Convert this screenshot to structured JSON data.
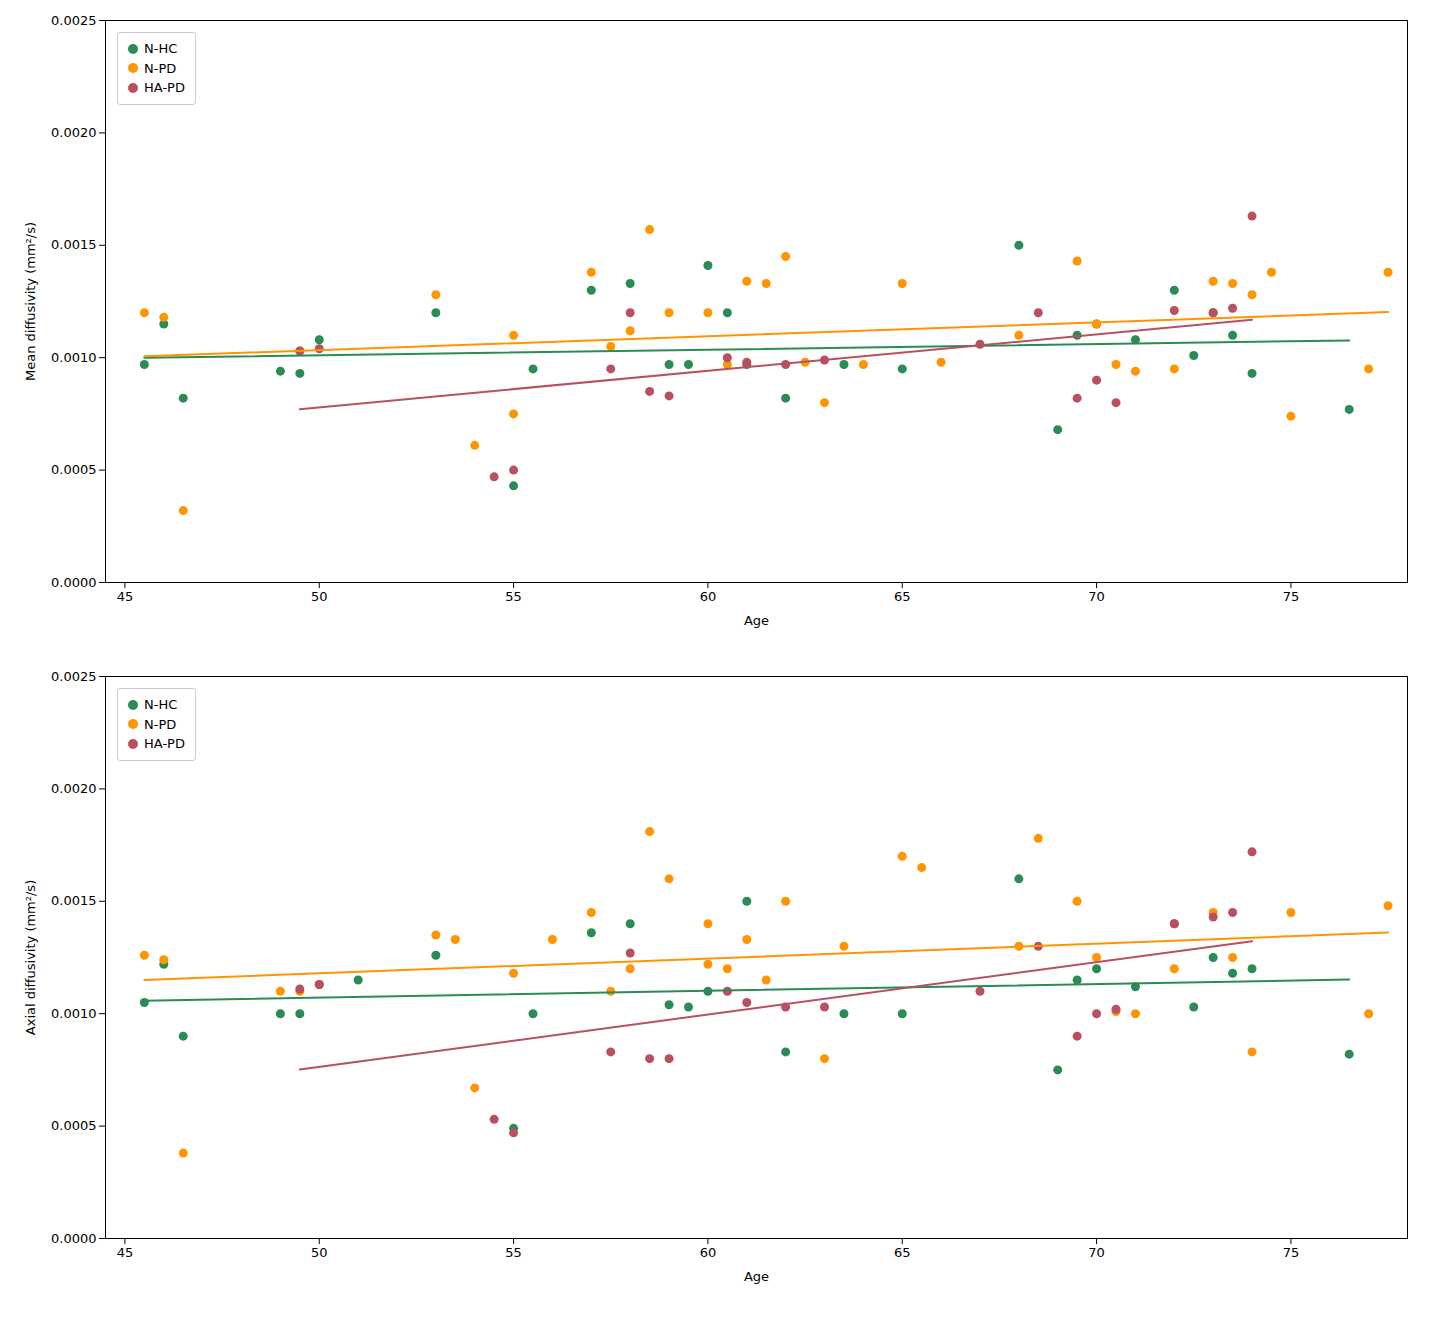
{
  "chart_data": [
    {
      "type": "scatter",
      "xlabel": "Age",
      "ylabel": "Mean diffusivity (mm²/s)",
      "xlim": [
        44.5,
        78
      ],
      "ylim": [
        0,
        0.0025
      ],
      "xticks": [
        45,
        50,
        55,
        60,
        65,
        70,
        75
      ],
      "yticks": [
        {
          "value": 0.0,
          "label": "0.0000"
        },
        {
          "value": 0.0005,
          "label": "0.0005"
        },
        {
          "value": 0.001,
          "label": "0.0010"
        },
        {
          "value": 0.0015,
          "label": "0.0015"
        },
        {
          "value": 0.002,
          "label": "0.0020"
        },
        {
          "value": 0.0025,
          "label": "0.0025"
        }
      ],
      "grid": false,
      "legend": "upper left",
      "series": [
        {
          "name": "N-HC",
          "color": "#2a8c55",
          "x": [
            45.5,
            46.0,
            46.5,
            49.0,
            49.5,
            50.0,
            53.0,
            55.0,
            55.5,
            57.0,
            58.0,
            59.0,
            59.5,
            60.0,
            60.5,
            61.0,
            62.0,
            63.5,
            65.0,
            68.0,
            69.0,
            69.5,
            70.0,
            71.0,
            72.0,
            72.5,
            73.0,
            73.5,
            74.0,
            76.5
          ],
          "values": [
            0.00097,
            0.00115,
            0.00082,
            0.00094,
            0.00093,
            0.00108,
            0.0012,
            0.00043,
            0.00095,
            0.0013,
            0.00133,
            0.00097,
            0.00097,
            0.00141,
            0.0012,
            0.00097,
            0.00082,
            0.00097,
            0.00095,
            0.0015,
            0.00068,
            0.0011,
            0.00115,
            0.00108,
            0.0013,
            0.00101,
            0.0012,
            0.0011,
            0.00093,
            0.00077
          ]
        },
        {
          "name": "N-PD",
          "color": "#ff9500",
          "x": [
            45.5,
            46.0,
            46.5,
            49.5,
            53.0,
            54.0,
            55.0,
            55.0,
            57.0,
            57.5,
            58.0,
            58.5,
            59.0,
            60.0,
            60.5,
            61.0,
            61.5,
            62.0,
            62.5,
            63.0,
            64.0,
            65.0,
            66.0,
            68.0,
            69.5,
            70.0,
            70.5,
            71.0,
            72.0,
            73.0,
            73.5,
            74.0,
            74.5,
            75.0,
            77.0,
            77.5
          ],
          "values": [
            0.0012,
            0.00118,
            0.00032,
            0.00103,
            0.00128,
            0.00061,
            0.00075,
            0.0011,
            0.00138,
            0.00105,
            0.00112,
            0.00157,
            0.0012,
            0.0012,
            0.00097,
            0.00134,
            0.00133,
            0.00145,
            0.00098,
            0.0008,
            0.00097,
            0.00133,
            0.00098,
            0.0011,
            0.00143,
            0.00115,
            0.00097,
            0.00094,
            0.00095,
            0.00134,
            0.00133,
            0.00128,
            0.00138,
            0.00074,
            0.00095,
            0.00138
          ]
        },
        {
          "name": "HA-PD",
          "color": "#b85060",
          "x": [
            49.5,
            50.0,
            54.5,
            55.0,
            57.5,
            58.0,
            58.5,
            59.0,
            60.5,
            61.0,
            62.0,
            63.0,
            67.0,
            68.5,
            69.5,
            70.0,
            70.5,
            72.0,
            73.0,
            73.5,
            74.0
          ],
          "values": [
            0.00103,
            0.00104,
            0.00047,
            0.0005,
            0.00095,
            0.0012,
            0.00085,
            0.00083,
            0.001,
            0.00098,
            0.00097,
            0.00099,
            0.00106,
            0.0012,
            0.00082,
            0.0009,
            0.0008,
            0.00121,
            0.0012,
            0.00122,
            0.00163
          ]
        }
      ]
    },
    {
      "type": "scatter",
      "xlabel": "Age",
      "ylabel": "Axial diffusivity (mm²/s)",
      "xlim": [
        44.5,
        78
      ],
      "ylim": [
        0,
        0.0025
      ],
      "xticks": [
        45,
        50,
        55,
        60,
        65,
        70,
        75
      ],
      "yticks": [
        {
          "value": 0.0,
          "label": "0.0000"
        },
        {
          "value": 0.0005,
          "label": "0.0005"
        },
        {
          "value": 0.001,
          "label": "0.0010"
        },
        {
          "value": 0.0015,
          "label": "0.0015"
        },
        {
          "value": 0.002,
          "label": "0.0020"
        },
        {
          "value": 0.0025,
          "label": "0.0025"
        }
      ],
      "grid": false,
      "legend": "upper left",
      "series": [
        {
          "name": "N-HC",
          "color": "#2a8c55",
          "x": [
            45.5,
            46.0,
            46.5,
            49.0,
            49.5,
            50.0,
            51.0,
            53.0,
            55.0,
            55.5,
            57.0,
            58.0,
            59.0,
            59.5,
            60.0,
            61.0,
            62.0,
            63.5,
            65.0,
            68.0,
            69.0,
            69.5,
            70.0,
            71.0,
            72.0,
            72.5,
            73.0,
            73.5,
            74.0,
            76.5
          ],
          "values": [
            0.00105,
            0.00122,
            0.0009,
            0.001,
            0.001,
            0.00113,
            0.00115,
            0.00126,
            0.00049,
            0.001,
            0.00136,
            0.0014,
            0.00104,
            0.00103,
            0.0011,
            0.0015,
            0.00083,
            0.001,
            0.001,
            0.0016,
            0.00075,
            0.00115,
            0.0012,
            0.00112,
            0.0014,
            0.00103,
            0.00125,
            0.00118,
            0.0012,
            0.00082
          ]
        },
        {
          "name": "N-PD",
          "color": "#ff9500",
          "x": [
            45.5,
            46.0,
            46.5,
            49.0,
            49.5,
            53.0,
            53.5,
            54.0,
            55.0,
            56.0,
            57.0,
            57.5,
            58.0,
            58.5,
            59.0,
            60.0,
            60.0,
            60.5,
            61.0,
            61.5,
            62.0,
            63.0,
            63.5,
            65.0,
            65.5,
            68.0,
            68.5,
            69.5,
            70.0,
            70.5,
            71.0,
            72.0,
            73.0,
            73.5,
            74.0,
            75.0,
            77.0,
            77.5
          ],
          "values": [
            0.00126,
            0.00124,
            0.00038,
            0.0011,
            0.0011,
            0.00135,
            0.00133,
            0.00067,
            0.00118,
            0.00133,
            0.00145,
            0.0011,
            0.0012,
            0.00181,
            0.0016,
            0.00122,
            0.0014,
            0.0012,
            0.00133,
            0.00115,
            0.0015,
            0.0008,
            0.0013,
            0.0017,
            0.00165,
            0.0013,
            0.00178,
            0.0015,
            0.00125,
            0.00101,
            0.001,
            0.0012,
            0.00145,
            0.00125,
            0.00083,
            0.00145,
            0.001,
            0.00148
          ]
        },
        {
          "name": "HA-PD",
          "color": "#b85060",
          "x": [
            49.5,
            50.0,
            54.5,
            55.0,
            57.5,
            58.0,
            58.5,
            59.0,
            60.5,
            61.0,
            62.0,
            63.0,
            67.0,
            68.5,
            69.5,
            70.0,
            70.5,
            72.0,
            73.0,
            73.5,
            74.0
          ],
          "values": [
            0.00111,
            0.00113,
            0.00053,
            0.00047,
            0.00083,
            0.00127,
            0.0008,
            0.0008,
            0.0011,
            0.00105,
            0.00103,
            0.00103,
            0.0011,
            0.0013,
            0.0009,
            0.001,
            0.00102,
            0.0014,
            0.00143,
            0.00145,
            0.00172
          ]
        }
      ]
    }
  ]
}
